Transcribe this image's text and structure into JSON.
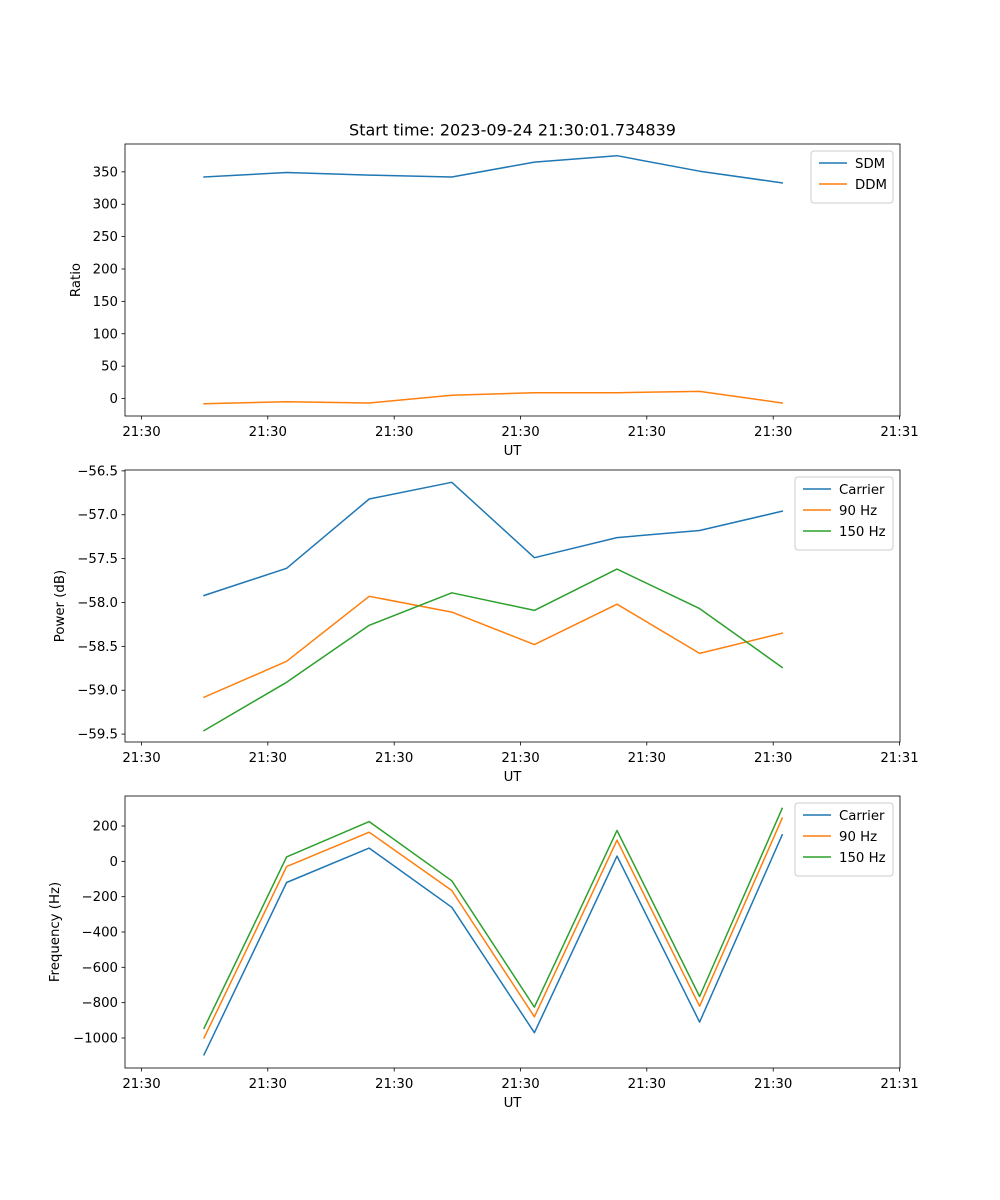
{
  "figure_title": "Start time: 2023-09-24 21:30:01.734839",
  "colors": {
    "blue": "#1f77b4",
    "orange": "#ff7f0e",
    "green": "#2ca02c"
  },
  "chart_data": [
    {
      "type": "line",
      "title": "Start time: 2023-09-24 21:30:01.734839",
      "xlabel": "UT",
      "ylabel": "Ratio",
      "x_tick_labels": [
        "21:30",
        "21:30",
        "21:30",
        "21:30",
        "21:30",
        "21:30",
        "21:30",
        "21:31"
      ],
      "y_ticks": [
        0,
        50,
        100,
        150,
        200,
        250,
        300,
        350
      ],
      "ylim": [
        -27,
        393
      ],
      "legend_position": "top-right",
      "series": [
        {
          "name": "SDM",
          "color": "#1f77b4",
          "values": [
            342,
            349,
            345,
            342,
            365,
            375,
            351,
            333
          ]
        },
        {
          "name": "DDM",
          "color": "#ff7f0e",
          "values": [
            -8,
            -5,
            -7,
            5,
            9,
            9,
            11,
            -7
          ]
        }
      ]
    },
    {
      "type": "line",
      "title": "",
      "xlabel": "UT",
      "ylabel": "Power (dB)",
      "x_tick_labels": [
        "21:30",
        "21:30",
        "21:30",
        "21:30",
        "21:30",
        "21:30",
        "21:30",
        "21:31"
      ],
      "y_ticks": [
        -59.5,
        -59.0,
        -58.5,
        -58.0,
        -57.5,
        -57.0,
        -56.5
      ],
      "y_tick_labels": [
        "−59.5",
        "−59.0",
        "−58.5",
        "−58.0",
        "−57.5",
        "−57.0",
        "−56.5"
      ],
      "ylim": [
        -59.59,
        -56.49
      ],
      "legend_position": "top-right",
      "series": [
        {
          "name": "Carrier",
          "color": "#1f77b4",
          "values": [
            -57.92,
            -57.61,
            -56.82,
            -56.63,
            -57.49,
            -57.26,
            -57.18,
            -56.96
          ]
        },
        {
          "name": "90 Hz",
          "color": "#ff7f0e",
          "values": [
            -59.08,
            -58.67,
            -57.93,
            -58.11,
            -58.48,
            -58.02,
            -58.58,
            -58.35
          ]
        },
        {
          "name": "150 Hz",
          "color": "#2ca02c",
          "values": [
            -59.46,
            -58.91,
            -58.26,
            -57.89,
            -58.09,
            -57.62,
            -58.07,
            -58.74
          ]
        }
      ]
    },
    {
      "type": "line",
      "title": "",
      "xlabel": "UT",
      "ylabel": "Frequency (Hz)",
      "x_tick_labels": [
        "21:30",
        "21:30",
        "21:30",
        "21:30",
        "21:30",
        "21:30",
        "21:30",
        "21:31"
      ],
      "y_ticks": [
        -1000,
        -800,
        -600,
        -400,
        -200,
        0,
        200
      ],
      "y_tick_labels": [
        "−1000",
        "−800",
        "−600",
        "−400",
        "−200",
        "0",
        "200"
      ],
      "ylim": [
        -1170,
        370
      ],
      "legend_position": "top-right",
      "series": [
        {
          "name": "Carrier",
          "color": "#1f77b4",
          "values": [
            -1095,
            -120,
            75,
            -260,
            -970,
            30,
            -910,
            150
          ]
        },
        {
          "name": "90 Hz",
          "color": "#ff7f0e",
          "values": [
            -1000,
            -30,
            165,
            -165,
            -880,
            120,
            -820,
            245
          ]
        },
        {
          "name": "150 Hz",
          "color": "#2ca02c",
          "values": [
            -945,
            25,
            225,
            -110,
            -825,
            175,
            -765,
            300
          ]
        }
      ]
    }
  ]
}
